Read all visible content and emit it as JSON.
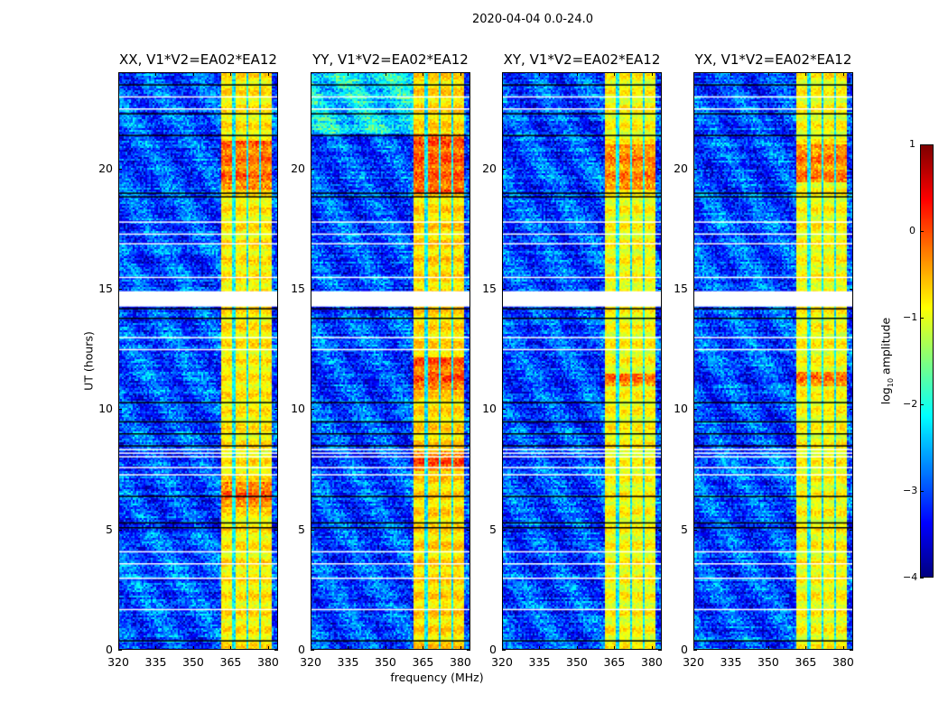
{
  "chart_data": {
    "type": "heatmap",
    "title": "2020-04-04 0.0-24.0",
    "xlabel": "frequency (MHz)",
    "ylabel": "UT (hours)",
    "xlim": [
      320,
      384
    ],
    "ylim": [
      0,
      24
    ],
    "xticks": [
      320,
      335,
      350,
      365,
      380
    ],
    "yticks": [
      0,
      5,
      10,
      15,
      20
    ],
    "panels": [
      {
        "title": "XX, V1*V2=EA02*EA12",
        "band_level": -0.8,
        "hot_hours": [
          [
            19.2,
            21.2
          ],
          [
            6.0,
            7.0
          ]
        ]
      },
      {
        "title": "YY, V1*V2=EA02*EA12",
        "band_level": -0.7,
        "hot_hours": [
          [
            19.0,
            21.5
          ],
          [
            10.8,
            12.2
          ],
          [
            7.5,
            8.3
          ]
        ]
      },
      {
        "title": "XY, V1*V2=EA02*EA12",
        "band_level": -0.9,
        "hot_hours": [
          [
            19.2,
            21.0
          ],
          [
            11.0,
            11.5
          ]
        ]
      },
      {
        "title": "YX, V1*V2=EA02*EA12",
        "band_level": -0.9,
        "hot_hours": [
          [
            19.5,
            21.0
          ],
          [
            11.0,
            11.6
          ]
        ]
      }
    ],
    "rfi_band_mhz": [
      361,
      381
    ],
    "channel_gaps_mhz": [
      366,
      371.3,
      376.5
    ],
    "background_level": -3.0,
    "flagged_hours_white": [
      14.45,
      14.6,
      14.75,
      14.9,
      8.05,
      8.2,
      8.35,
      7.6,
      7.3,
      12.5,
      13.0,
      17.3,
      17.8,
      16.9,
      15.5,
      22.5,
      23.0,
      4.1,
      3.6,
      3.0,
      1.7
    ],
    "flagged_hours_black": [
      14.2,
      18.85,
      19.0,
      23.5,
      22.3,
      21.4,
      5.1,
      5.3,
      0.4,
      9.0,
      9.5,
      10.3,
      13.8,
      6.4,
      8.5
    ],
    "colorbar": {
      "label_prefix": "log",
      "label_sub": "10",
      "label_suffix": " amplitude",
      "range": [
        -4,
        1
      ],
      "ticks": [
        "1",
        "0",
        "−1",
        "−2",
        "−3",
        "−4"
      ],
      "tick_values": [
        1,
        0,
        -1,
        -2,
        -3,
        -4
      ],
      "colormap": "jet"
    }
  }
}
